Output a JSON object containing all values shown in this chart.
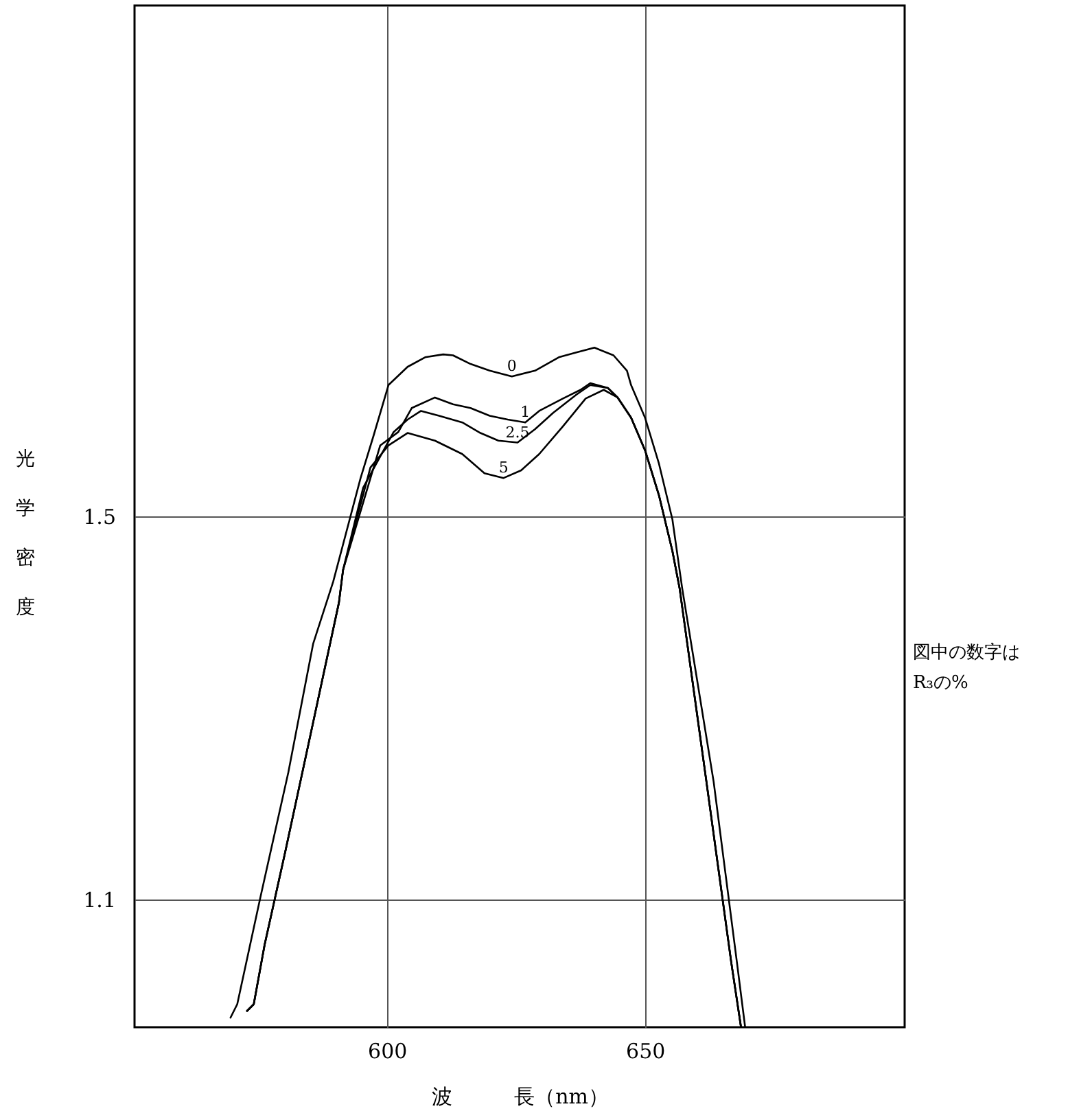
{
  "chart_data": {
    "type": "line",
    "xlabel": "波　　　長（nm）",
    "ylabel": "光学密度",
    "xlim": [
      551.1,
      700.3
    ],
    "ylim": [
      0.967,
      2.033
    ],
    "xticks": [
      600,
      650
    ],
    "yticks": [
      1.1,
      1.5
    ],
    "grid": true,
    "marker": "none",
    "line_style": "solid",
    "annotations": [
      "図中の数字は\nR₃の%"
    ],
    "series": [
      {
        "name": "0",
        "color": "#000000",
        "x": [
          569.7,
          571.0,
          575.5,
          580.9,
          585.7,
          589.6,
          594.9,
          597.4,
          600.3,
          604.0,
          607.4,
          610.9,
          612.8,
          616.2,
          619.9,
          624.2,
          628.7,
          633.3,
          636.7,
          640.2,
          643.9,
          646.5,
          647.3,
          650,
          652.7,
          655.3,
          657.2,
          663.3,
          667.8,
          669.4
        ],
        "values": [
          0.977,
          0.991,
          1.103,
          1.233,
          1.367,
          1.432,
          1.54,
          1.584,
          1.637,
          1.656,
          1.666,
          1.669,
          1.668,
          1.659,
          1.652,
          1.646,
          1.652,
          1.666,
          1.671,
          1.676,
          1.668,
          1.652,
          1.637,
          1.603,
          1.555,
          1.497,
          1.425,
          1.223,
          1.035,
          0.967
        ]
      },
      {
        "name": "1",
        "color": "#000000",
        "x": [
          572.9,
          574.2,
          576.3,
          580.3,
          586.1,
          590.7,
          591.5,
          598.7,
          602.2,
          604.8,
          609.3,
          612.8,
          616.2,
          619.9,
          623.4,
          626.8,
          629.5,
          634.1,
          637.5,
          639.4,
          642.8,
          644.7,
          647.3,
          650,
          652.7,
          655.3,
          656.7,
          661.9,
          666.7,
          668.6
        ],
        "values": [
          0.984,
          0.991,
          1.053,
          1.15,
          1.295,
          1.41,
          1.444,
          1.574,
          1.588,
          1.613,
          1.624,
          1.617,
          1.613,
          1.605,
          1.601,
          1.598,
          1.61,
          1.623,
          1.632,
          1.639,
          1.634,
          1.624,
          1.603,
          1.569,
          1.522,
          1.464,
          1.425,
          1.223,
          1.035,
          0.967
        ]
      },
      {
        "name": "2.5",
        "color": "#000000",
        "x": [
          572.9,
          574.2,
          576.3,
          580.3,
          586.1,
          590.7,
          591.5,
          595.4,
          601.3,
          604.0,
          606.6,
          610.1,
          614.6,
          618.1,
          621.6,
          625.3,
          628.7,
          632.2,
          636.7,
          639.4,
          642.8,
          644.7,
          647.3,
          650,
          652.7,
          655.3,
          656.7,
          661.9,
          666.7,
          668.6
        ],
        "values": [
          0.984,
          0.991,
          1.053,
          1.15,
          1.295,
          1.41,
          1.444,
          1.53,
          1.588,
          1.601,
          1.61,
          1.605,
          1.598,
          1.587,
          1.579,
          1.577,
          1.591,
          1.608,
          1.627,
          1.637,
          1.634,
          1.624,
          1.603,
          1.569,
          1.522,
          1.464,
          1.425,
          1.223,
          1.035,
          0.967
        ]
      },
      {
        "name": "5",
        "color": "#000000",
        "x": [
          572.9,
          574.2,
          576.3,
          580.3,
          586.1,
          590.7,
          591.5,
          596.8,
          600.3,
          604.0,
          609.3,
          614.6,
          618.9,
          622.6,
          626.0,
          629.5,
          634.1,
          638.5,
          642.0,
          644.7,
          647.3,
          650,
          652.7,
          655.3,
          656.7,
          661.9,
          666.7,
          668.6
        ],
        "values": [
          0.984,
          0.991,
          1.053,
          1.15,
          1.295,
          1.41,
          1.444,
          1.551,
          1.574,
          1.587,
          1.579,
          1.565,
          1.545,
          1.54,
          1.548,
          1.565,
          1.594,
          1.623,
          1.632,
          1.624,
          1.603,
          1.569,
          1.522,
          1.464,
          1.425,
          1.223,
          1.035,
          0.967
        ]
      }
    ]
  }
}
